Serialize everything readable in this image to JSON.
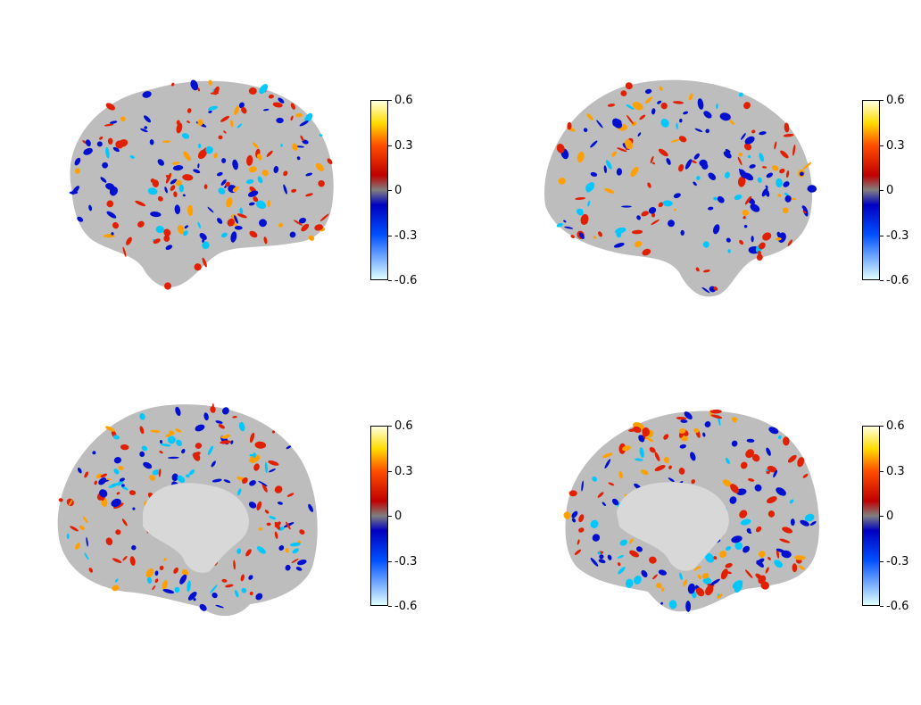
{
  "figure": {
    "panels": [
      {
        "id": "left-lateral",
        "view": "lateral",
        "hemisphere": "left"
      },
      {
        "id": "right-lateral",
        "view": "lateral",
        "hemisphere": "right"
      },
      {
        "id": "left-medial",
        "view": "medial",
        "hemisphere": "left"
      },
      {
        "id": "right-medial",
        "view": "medial",
        "hemisphere": "right"
      }
    ],
    "colorbar": {
      "ticks": [
        "0.6",
        "0.3",
        "0",
        "-0.3",
        "-0.6"
      ],
      "stops": [
        {
          "value": 0.6,
          "color": "#ffffe0"
        },
        {
          "value": 0.45,
          "color": "#ffdc00"
        },
        {
          "value": 0.3,
          "color": "#ff4d00"
        },
        {
          "value": 0.1,
          "color": "#c00000"
        },
        {
          "value": 0.0,
          "color": "#808080"
        },
        {
          "value": -0.1,
          "color": "#0000c0"
        },
        {
          "value": -0.3,
          "color": "#0050ff"
        },
        {
          "value": -0.6,
          "color": "#e0ffff"
        }
      ],
      "threshold_color": "#808080"
    },
    "colors": {
      "cortex": "#bdbdbd",
      "positive": "#e02000",
      "positive_strong": "#ffa000",
      "negative": "#0010d0",
      "negative_strong": "#00c8ff"
    }
  }
}
